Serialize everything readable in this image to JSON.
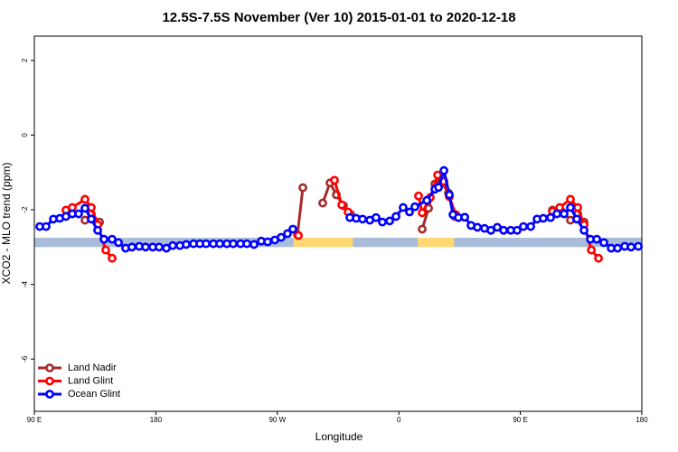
{
  "chart_data": {
    "type": "line",
    "title": "12.5S-7.5S November (Ver 10)   2015-01-01 to 2020-12-18",
    "x_label": "Longitude",
    "y_label": "XCO2 - MLO trend (ppm)",
    "xlim": [
      90,
      540
    ],
    "ylim": [
      -7.4,
      2.65
    ],
    "xticks": [
      {
        "value": 90,
        "label": "90 E"
      },
      180,
      {
        "value": 270,
        "label": "90 W"
      },
      {
        "value": 360,
        "label": "0"
      },
      {
        "value": 450,
        "label": "90 E"
      },
      {
        "value": 540,
        "label": "180"
      }
    ],
    "yticks": [
      2,
      0,
      -2,
      -4,
      -6
    ],
    "legend": "lower-left",
    "band": {
      "range": [
        -2.75,
        -3.0
      ],
      "color": "#a9bcd9",
      "highlight_color": "#fdd873",
      "highlights": [
        [
          282,
          326
        ],
        [
          374,
          401
        ]
      ]
    },
    "series": [
      {
        "name": "Land Nadir",
        "color": "#a52a2a",
        "x": [
          127.5,
          132.2,
          138.3,
          210,
          284.9,
          288.9,
          296,
          303.6,
          309.0,
          313.7,
          319.0,
          324.4,
          350,
          377.3,
          382.0,
          386.7,
          391.4,
          396.7,
          401.4,
          440,
          473.8,
          481.0,
          487.1,
          492.5,
          497.2
        ],
        "values": [
          -2.28,
          -2.11,
          -2.33,
          null,
          -2.67,
          -1.41,
          null,
          -1.82,
          -1.28,
          -1.6,
          -1.89,
          -2.13,
          null,
          -2.52,
          -1.96,
          -1.31,
          -1.24,
          -1.55,
          -2.18,
          null,
          -2.01,
          -2.06,
          -2.28,
          -2.11,
          -2.33
        ]
      },
      {
        "name": "Land Glint",
        "color": "#ff0000",
        "x": [
          113.4,
          118.1,
          127.5,
          132.2,
          136.9,
          142.9,
          147.6,
          210,
          285.6,
          300,
          312.3,
          317.7,
          322.4,
          350,
          374.6,
          377.3,
          383.3,
          388.7,
          393.4,
          397.4,
          402.1,
          440,
          473.8,
          479.1,
          487.1,
          492.5,
          497.2,
          502.6,
          507.9
        ],
        "values": [
          -2.01,
          -1.94,
          -1.72,
          -1.94,
          -2.4,
          -3.08,
          -3.3,
          null,
          -2.69,
          null,
          -1.21,
          -1.87,
          -2.06,
          null,
          -1.63,
          -2.08,
          -1.67,
          -1.07,
          -1.24,
          -1.65,
          -2.13,
          null,
          -2.04,
          -1.94,
          -1.72,
          -1.94,
          -2.4,
          -3.08,
          -3.3
        ]
      },
      {
        "name": "Ocean Glint",
        "color": "#0000ff",
        "x": [
          94.0,
          98.7,
          104.1,
          108.8,
          113.4,
          118.1,
          122.8,
          127.5,
          132.2,
          136.9,
          141.6,
          147.6,
          152.3,
          157.6,
          162.3,
          167.7,
          172.4,
          177.7,
          182.4,
          187.8,
          192.5,
          197.8,
          202.5,
          207.9,
          212.6,
          217.2,
          222.6,
          227.3,
          232.6,
          237.3,
          242.7,
          247.4,
          252.7,
          258.1,
          262.8,
          268.1,
          272.8,
          277.5,
          281.5,
          305,
          323.7,
          328.4,
          333.1,
          338.5,
          343.1,
          347.8,
          353.2,
          357.9,
          363.2,
          367.9,
          371.9,
          380.7,
          386.7,
          389.4,
          393.4,
          397.4,
          400.1,
          404.1,
          408.8,
          413.5,
          418.2,
          423.5,
          428.2,
          432.9,
          437.6,
          442.9,
          447.6,
          452.3,
          457.7,
          462.4,
          467.0,
          472.4,
          477.1,
          482.4,
          487.1,
          491.8,
          497.2,
          501.9,
          506.6,
          511.9,
          517.3,
          522.0,
          527.3,
          532.0,
          537.4
        ],
        "values": [
          -2.45,
          -2.45,
          -2.25,
          -2.23,
          -2.18,
          -2.11,
          -2.11,
          -1.96,
          -2.25,
          -2.55,
          -2.79,
          -2.79,
          -2.88,
          -3.03,
          -3.0,
          -2.98,
          -3.0,
          -3.0,
          -3.0,
          -3.03,
          -2.96,
          -2.96,
          -2.93,
          -2.91,
          -2.91,
          -2.91,
          -2.91,
          -2.91,
          -2.91,
          -2.91,
          -2.91,
          -2.91,
          -2.93,
          -2.84,
          -2.86,
          -2.81,
          -2.74,
          -2.64,
          -2.52,
          null,
          -2.21,
          -2.23,
          -2.25,
          -2.28,
          -2.21,
          -2.33,
          -2.3,
          -2.18,
          -1.94,
          -2.06,
          -1.92,
          -1.75,
          -1.45,
          -1.4,
          -0.95,
          -1.6,
          -2.13,
          -2.21,
          -2.2,
          -2.42,
          -2.47,
          -2.5,
          -2.55,
          -2.47,
          -2.55,
          -2.55,
          -2.55,
          -2.45,
          -2.45,
          -2.25,
          -2.23,
          -2.21,
          -2.11,
          -2.11,
          -1.94,
          -2.25,
          -2.55,
          -2.79,
          -2.79,
          -2.88,
          -3.03,
          -3.03,
          -2.98,
          -3.0,
          -2.98
        ]
      }
    ]
  }
}
